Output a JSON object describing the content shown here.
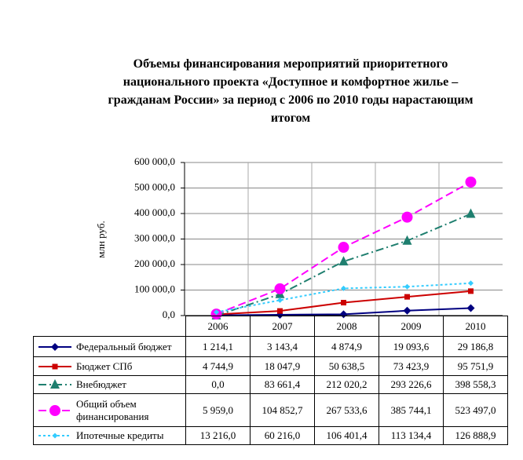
{
  "chart_data": {
    "type": "line",
    "title": "Объемы финансирования мероприятий приоритетного национального проекта «Доступное и комфортное жилье – гражданам России» за период с 2006 по 2010 годы нарастающим итогом",
    "y_label": "млн руб.",
    "categories": [
      "2006",
      "2007",
      "2008",
      "2009",
      "2010"
    ],
    "ylim": [
      0,
      600000
    ],
    "yticks": [
      {
        "value": 0,
        "label": "0,0"
      },
      {
        "value": 100000,
        "label": "100 000,0"
      },
      {
        "value": 200000,
        "label": "200 000,0"
      },
      {
        "value": 300000,
        "label": "300 000,0"
      },
      {
        "value": 400000,
        "label": "400 000,0"
      },
      {
        "value": 500000,
        "label": "500 000,0"
      },
      {
        "value": 600000,
        "label": "600 000,0"
      }
    ],
    "grid": true,
    "series": [
      {
        "name": "Федеральный бюджет",
        "color": "#000080",
        "marker": "diamond",
        "dash": "solid",
        "values": [
          1214.1,
          3143.4,
          4874.9,
          19093.6,
          29186.8
        ],
        "value_labels": [
          "1 214,1",
          "3 143,4",
          "4 874,9",
          "19 093,6",
          "29 186,8"
        ]
      },
      {
        "name": "Бюджет СПб",
        "color": "#cc0000",
        "marker": "square",
        "dash": "solid",
        "values": [
          4744.9,
          18047.9,
          50638.5,
          73423.9,
          95751.9
        ],
        "value_labels": [
          "4 744,9",
          "18 047,9",
          "50 638,5",
          "73 423,9",
          "95 751,9"
        ]
      },
      {
        "name": "Внебюджет",
        "color": "#1f7f6f",
        "marker": "triangle",
        "dash": "dashdot",
        "values": [
          0.0,
          83661.4,
          212020.2,
          293226.6,
          398558.3
        ],
        "value_labels": [
          "0,0",
          "83 661,4",
          "212 020,2",
          "293 226,6",
          "398 558,3"
        ]
      },
      {
        "name": "Общий объем финансирования",
        "color": "#ff00ff",
        "marker": "circle",
        "dash": "dashed",
        "values": [
          5959.0,
          104852.7,
          267533.6,
          385744.1,
          523497.0
        ],
        "value_labels": [
          "5 959,0",
          "104 852,7",
          "267 533,6",
          "385 744,1",
          "523 497,0"
        ]
      },
      {
        "name": "Ипотечные кредиты",
        "color": "#33ccff",
        "marker": "smalldiamond",
        "dash": "dotted",
        "values": [
          13216.0,
          60216.0,
          106401.4,
          113134.4,
          126888.9
        ],
        "value_labels": [
          "13 216,0",
          "60 216,0",
          "106 401,4",
          "113 134,4",
          "126 888,9"
        ]
      }
    ]
  }
}
